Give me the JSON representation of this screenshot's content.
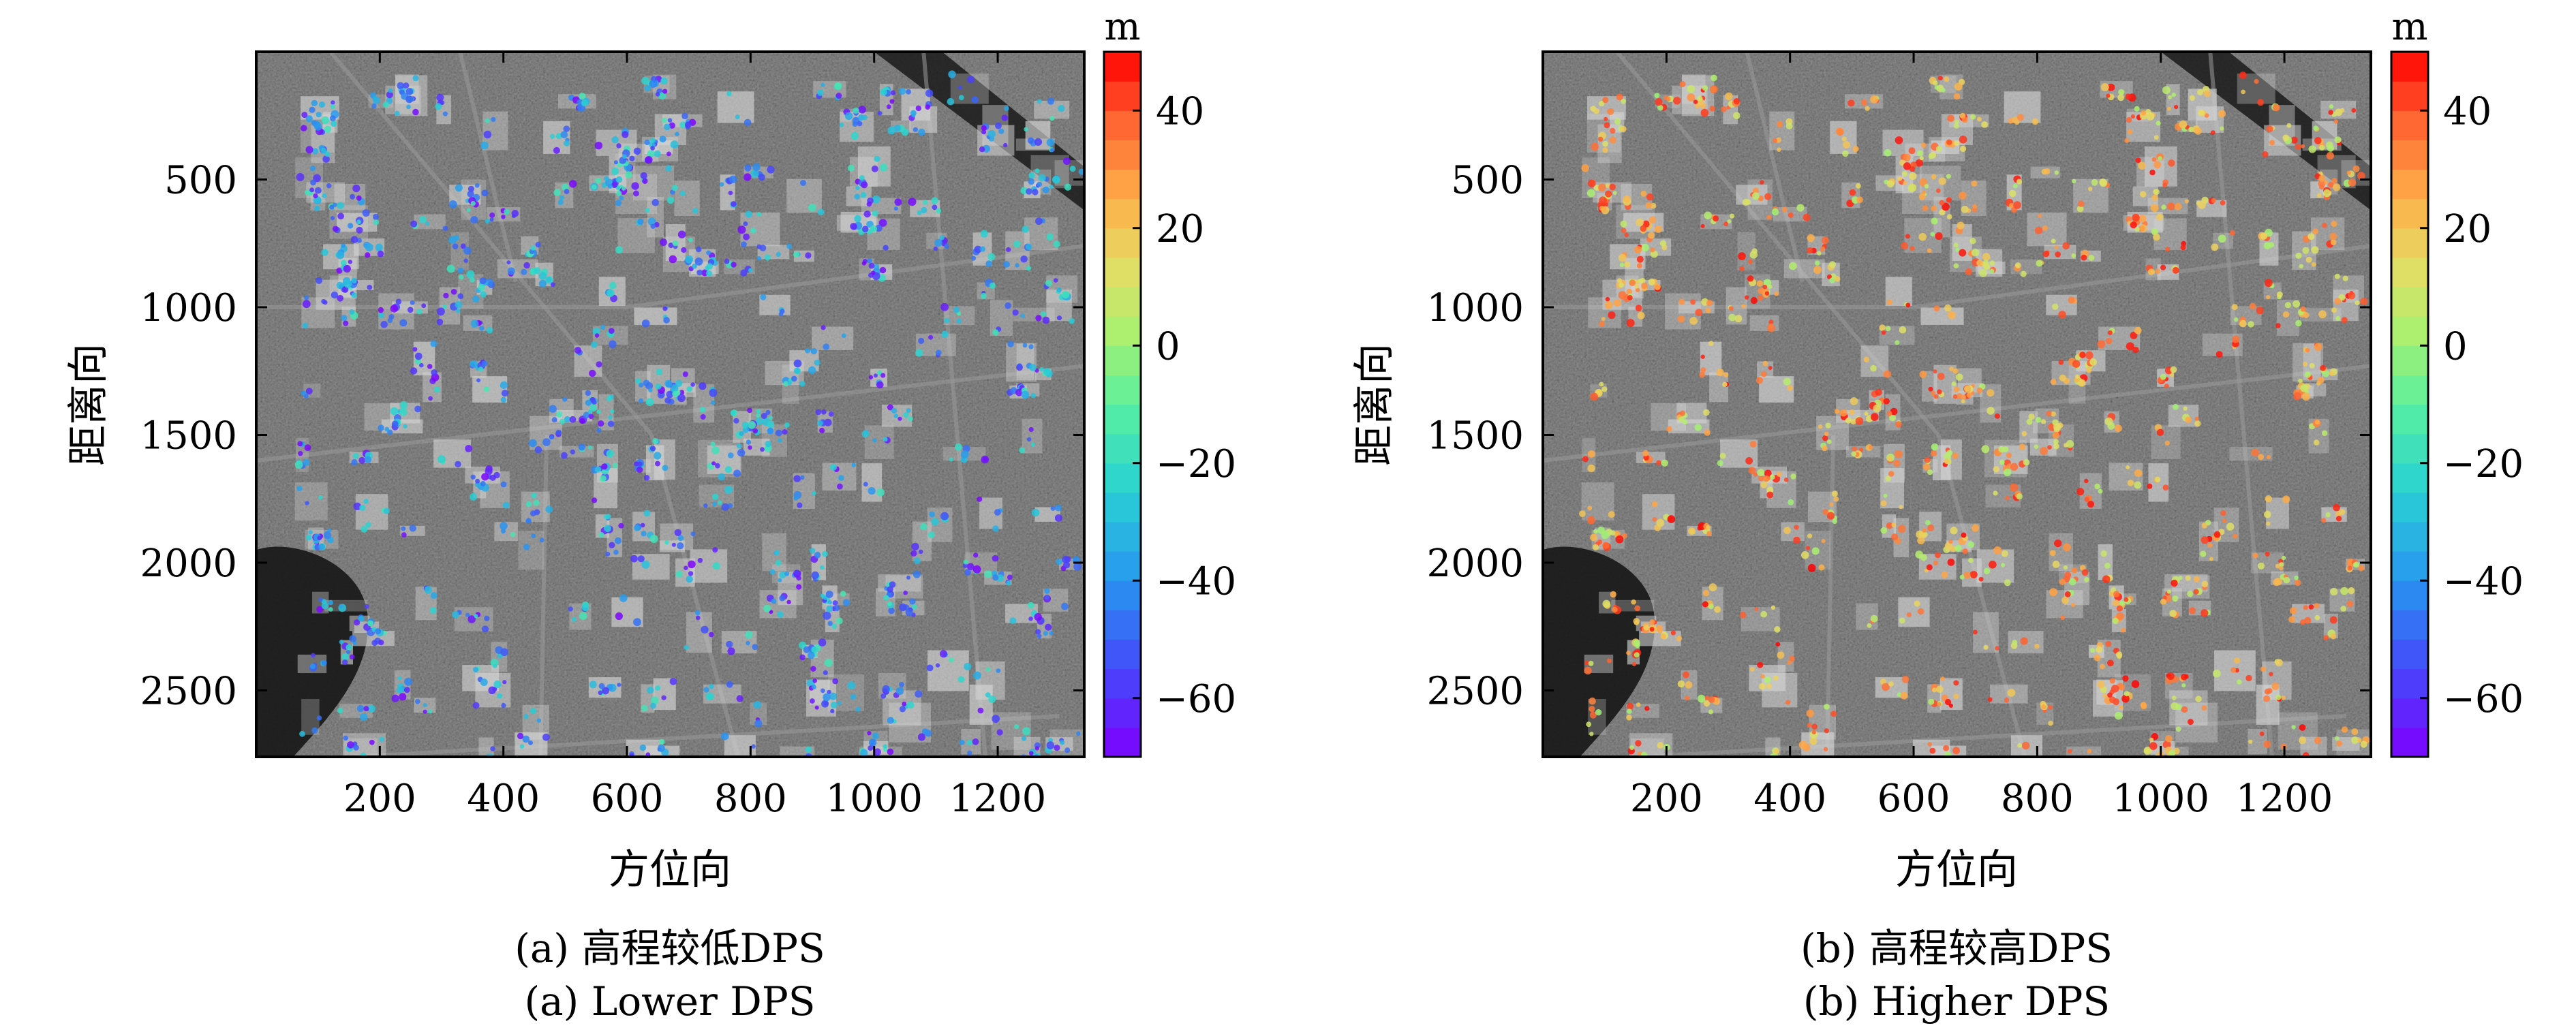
{
  "chart_data": [
    {
      "type": "heatmap",
      "panel": "a",
      "caption_cn": "(a) 高程较低DPS",
      "caption_en": "(a) Lower DPS",
      "xlabel": "方位向",
      "ylabel": "距离向",
      "xlim": [
        0,
        1340
      ],
      "ylim": [
        2760,
        0
      ],
      "xticks": [
        "200",
        "400",
        "600",
        "800",
        "1000",
        "1200"
      ],
      "yticks": [
        "500",
        "1000",
        "1500",
        "2000",
        "2500"
      ],
      "colorbar": {
        "unit": "m",
        "range": [
          -70,
          50
        ],
        "ticks": [
          "40",
          "20",
          "0",
          "−20",
          "−40",
          "−60"
        ],
        "colormap": "rainbow",
        "levels": 24
      },
      "background": "grayscale SAR intensity image",
      "dps_elevation_range": [
        -70,
        -15
      ]
    },
    {
      "type": "heatmap",
      "panel": "b",
      "caption_cn": "(b) 高程较高DPS",
      "caption_en": "(b) Higher DPS",
      "xlabel": "方位向",
      "ylabel": "距离向",
      "xlim": [
        0,
        1340
      ],
      "ylim": [
        2760,
        0
      ],
      "xticks": [
        "200",
        "400",
        "600",
        "800",
        "1000",
        "1200"
      ],
      "yticks": [
        "500",
        "1000",
        "1500",
        "2000",
        "2500"
      ],
      "colorbar": {
        "unit": "m",
        "range": [
          -70,
          50
        ],
        "ticks": [
          "40",
          "20",
          "0",
          "−20",
          "−40",
          "−60"
        ],
        "colormap": "rainbow",
        "levels": 24
      },
      "background": "grayscale SAR intensity image",
      "dps_elevation_range": [
        0,
        50
      ]
    }
  ]
}
